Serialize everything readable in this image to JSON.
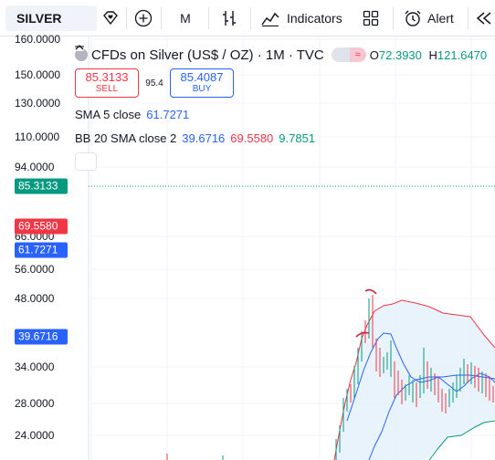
{
  "toolbar": {
    "symbol": "SILVER",
    "interval": "M",
    "indicators_label": "Indicators",
    "alert_label": "Alert"
  },
  "legend": {
    "title": "CFDs on Silver (US$ / OZ) · 1M · TVC",
    "open_key": "O",
    "open_value": "72.3930",
    "high_key": "H",
    "high_value": "121.6470",
    "sell_price": "85.3133",
    "sell_label": "SELL",
    "spread": "95.4",
    "buy_price": "85.4087",
    "buy_label": "BUY",
    "sma": {
      "name": "SMA 5 close",
      "value": "61.7271"
    },
    "bb": {
      "name": "BB 20 SMA close 2",
      "basis": "39.6716",
      "upper": "69.5580",
      "lower": "9.7851"
    }
  },
  "price_scale": {
    "labels": [
      "160.0000",
      "150.0000",
      "130.0000",
      "110.0000",
      "94.0000",
      "66.0000",
      "56.0000",
      "48.0000",
      "34.0000",
      "28.0000",
      "24.0000"
    ],
    "tags": {
      "last": "85.3133",
      "bb_upper": "69.5580",
      "sma": "61.7271",
      "bb_basis": "39.6716"
    }
  },
  "colors": {
    "up": "#089981",
    "down": "#f23645",
    "sma": "#2962ff",
    "bb_basis": "#2962ff",
    "bb_upper": "#f23645",
    "bb_lower": "#089981",
    "bb_fill": "#e3f0fb",
    "annotation": "#d81b3a"
  },
  "icons": {
    "favorite": "diamond-heart-icon",
    "compare": "plus-circle-icon",
    "bar_style": "candles-icon",
    "indicators": "chart-line-icon",
    "layouts": "grid-icon",
    "alert": "alarm-clock-icon",
    "replay": "rewind-icon",
    "collapse": "chevron-up-icon"
  }
}
